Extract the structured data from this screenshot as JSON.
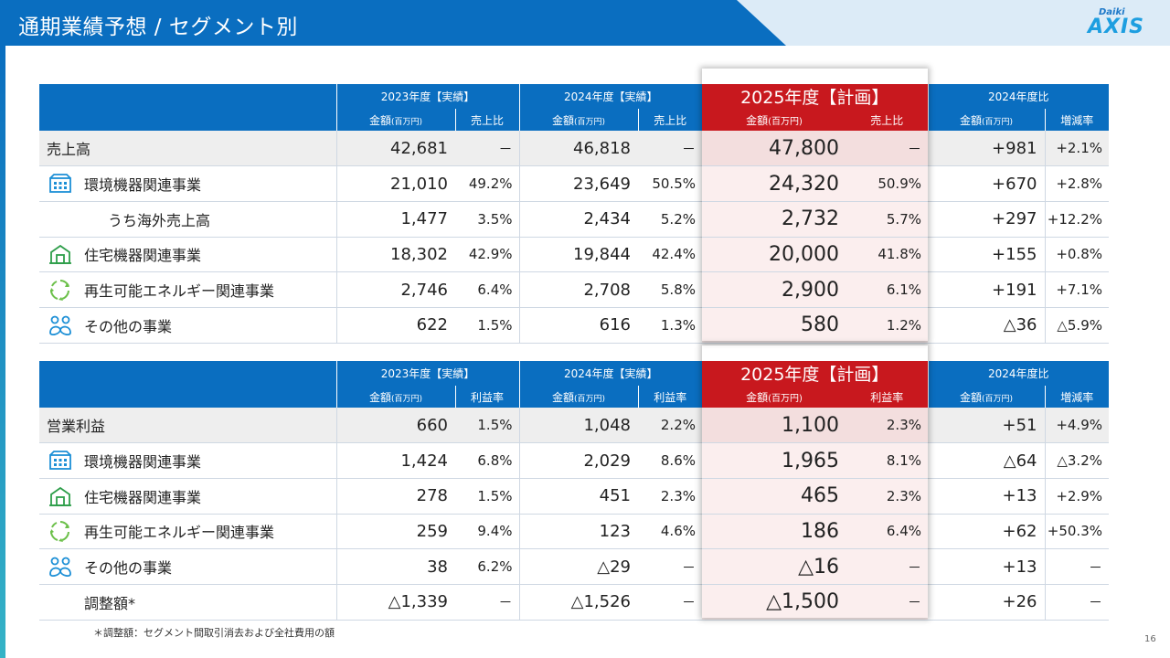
{
  "title": "通期業績予想 / セグメント別",
  "logo": {
    "small": "Daiki",
    "main": "AXIS"
  },
  "page_number": "16",
  "footnote": "＊調整額：セグメント間取引消去および全社費用の額",
  "sales_table": {
    "periods": [
      "2023年度【実績】",
      "2024年度【実績】",
      "2025年度【計画】",
      "2024年度比"
    ],
    "cols": [
      "金額",
      "(百万円)",
      "売上比",
      "増減率"
    ],
    "rows": [
      {
        "label": "売上高",
        "icon": "",
        "v23": "42,681",
        "r23": "－",
        "v24": "46,818",
        "r24": "－",
        "v25": "47,800",
        "r25": "－",
        "diff": "+981",
        "rate": "+2.1%"
      },
      {
        "label": "環境機器関連事業",
        "icon": "building-icon",
        "v23": "21,010",
        "r23": "49.2%",
        "v24": "23,649",
        "r24": "50.5%",
        "v25": "24,320",
        "r25": "50.9%",
        "diff": "+670",
        "rate": "+2.8%"
      },
      {
        "label": "うち海外売上高",
        "icon": "",
        "v23": "1,477",
        "r23": "3.5%",
        "v24": "2,434",
        "r24": "5.2%",
        "v25": "2,732",
        "r25": "5.7%",
        "diff": "+297",
        "rate": "+12.2%"
      },
      {
        "label": "住宅機器関連事業",
        "icon": "house-icon",
        "v23": "18,302",
        "r23": "42.9%",
        "v24": "19,844",
        "r24": "42.4%",
        "v25": "20,000",
        "r25": "41.8%",
        "diff": "+155",
        "rate": "+0.8%"
      },
      {
        "label": "再生可能エネルギー関連事業",
        "icon": "recycle-icon",
        "v23": "2,746",
        "r23": "6.4%",
        "v24": "2,708",
        "r24": "5.8%",
        "v25": "2,900",
        "r25": "6.1%",
        "diff": "+191",
        "rate": "+7.1%"
      },
      {
        "label": "その他の事業",
        "icon": "people-icon",
        "v23": "622",
        "r23": "1.5%",
        "v24": "616",
        "r24": "1.3%",
        "v25": "580",
        "r25": "1.2%",
        "diff": "△36",
        "rate": "△5.9%"
      }
    ]
  },
  "profit_table": {
    "periods": [
      "2023年度【実績】",
      "2024年度【実績】",
      "2025年度【計画】",
      "2024年度比"
    ],
    "cols": [
      "金額",
      "(百万円)",
      "利益率",
      "増減率"
    ],
    "rows": [
      {
        "label": "営業利益",
        "icon": "",
        "v23": "660",
        "r23": "1.5%",
        "v24": "1,048",
        "r24": "2.2%",
        "v25": "1,100",
        "r25": "2.3%",
        "diff": "+51",
        "rate": "+4.9%"
      },
      {
        "label": "環境機器関連事業",
        "icon": "building-icon",
        "v23": "1,424",
        "r23": "6.8%",
        "v24": "2,029",
        "r24": "8.6%",
        "v25": "1,965",
        "r25": "8.1%",
        "diff": "△64",
        "rate": "△3.2%"
      },
      {
        "label": "住宅機器関連事業",
        "icon": "house-icon",
        "v23": "278",
        "r23": "1.5%",
        "v24": "451",
        "r24": "2.3%",
        "v25": "465",
        "r25": "2.3%",
        "diff": "+13",
        "rate": "+2.9%"
      },
      {
        "label": "再生可能エネルギー関連事業",
        "icon": "recycle-icon",
        "v23": "259",
        "r23": "9.4%",
        "v24": "123",
        "r24": "4.6%",
        "v25": "186",
        "r25": "6.4%",
        "diff": "+62",
        "rate": "+50.3%"
      },
      {
        "label": "その他の事業",
        "icon": "people-icon",
        "v23": "38",
        "r23": "6.2%",
        "v24": "△29",
        "r24": "－",
        "v25": "△16",
        "r25": "－",
        "diff": "+13",
        "rate": "－"
      },
      {
        "label": "調整額*",
        "icon": "",
        "v23": "△1,339",
        "r23": "－",
        "v24": "△1,526",
        "r24": "－",
        "v25": "△1,500",
        "r25": "－",
        "diff": "+26",
        "rate": "－"
      }
    ]
  },
  "colors": {
    "header_blue": "#0a6ec0",
    "plan_red": "#c8181e",
    "plan_bg": "#fbeeee",
    "total_bg": "#eeeeee",
    "icon_blue": "#1c8fd6",
    "icon_green": "#2e9e4a"
  }
}
